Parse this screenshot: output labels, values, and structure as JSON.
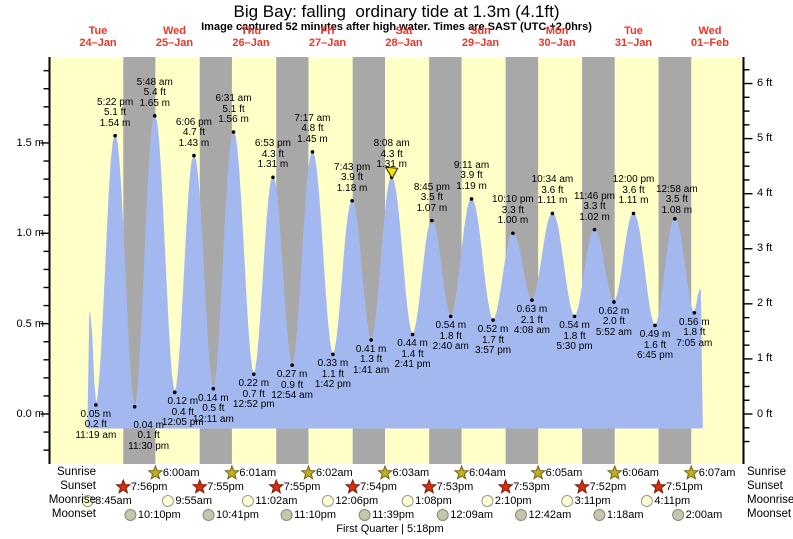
{
  "title": "Big Bay: falling  ordinary tide at 1.3m (4.1ft)",
  "subtitle": "Image captured 52 minutes after high water. Times are SAST (UTC +2.0hrs)",
  "days": [
    {
      "dow": "Tue",
      "date": "24–Jan"
    },
    {
      "dow": "Wed",
      "date": "25–Jan"
    },
    {
      "dow": "Thu",
      "date": "26–Jan"
    },
    {
      "dow": "Fri",
      "date": "27–Jan"
    },
    {
      "dow": "Sat",
      "date": "28–Jan"
    },
    {
      "dow": "Sun",
      "date": "29–Jan"
    },
    {
      "dow": "Mon",
      "date": "30–Jan"
    },
    {
      "dow": "Tue",
      "date": "31–Jan"
    },
    {
      "dow": "Wed",
      "date": "01–Feb"
    }
  ],
  "colors": {
    "day_background": "#ffffc8",
    "night_band": "#a8a8a8",
    "tide_fill": "#a4b8f0",
    "day_label_red": "#e8362a",
    "axis_black": "#000000",
    "sunrise_star_fill": "#c4b01e",
    "sunrise_star_stroke": "#6e6414",
    "sunset_star_fill": "#d92e10",
    "sunset_star_stroke": "#7a1a08",
    "moonrise_fill": "#ffffd6",
    "moonrise_stroke": "#999988",
    "moonset_fill": "#c6c6ad",
    "moonset_stroke": "#88887a",
    "marker_yellow": "#f5e400"
  },
  "chart_data": {
    "type": "area",
    "title": "Big Bay: falling  ordinary tide at 1.3m (4.1ft)",
    "y_axis_left": {
      "unit": "m",
      "major_ticks": [
        0.0,
        0.5,
        1.0,
        1.5
      ],
      "minor_step": 0.1,
      "range": [
        -0.28,
        1.98
      ]
    },
    "y_axis_right": {
      "unit": "ft",
      "major_ticks": [
        0,
        1,
        2,
        3,
        4,
        5,
        6
      ],
      "minor_step": 0.25
    },
    "extremes": [
      {
        "day": 0,
        "type": "low",
        "time": "11:19 am",
        "ft": 0.2,
        "m": 0.05
      },
      {
        "day": 0,
        "type": "high",
        "time": "5:22 pm",
        "ft": 5.1,
        "m": 1.54
      },
      {
        "day": 0,
        "type": "low",
        "time": "11:30 pm",
        "ft": 0.1,
        "m": 0.04
      },
      {
        "day": 1,
        "type": "high",
        "time": "5:48 am",
        "ft": 5.4,
        "m": 1.65
      },
      {
        "day": 1,
        "type": "low",
        "time": "12:05 pm",
        "ft": 0.4,
        "m": 0.12
      },
      {
        "day": 1,
        "type": "high",
        "time": "6:06 pm",
        "ft": 4.7,
        "m": 1.43
      },
      {
        "day": 2,
        "type": "low",
        "time": "12:11 am",
        "ft": 0.5,
        "m": 0.14
      },
      {
        "day": 2,
        "type": "high",
        "time": "6:31 am",
        "ft": 5.1,
        "m": 1.56
      },
      {
        "day": 2,
        "type": "low",
        "time": "12:52 pm",
        "ft": 0.7,
        "m": 0.22
      },
      {
        "day": 2,
        "type": "high",
        "time": "6:53 pm",
        "ft": 4.3,
        "m": 1.31
      },
      {
        "day": 3,
        "type": "low",
        "time": "12:54 am",
        "ft": 0.9,
        "m": 0.27
      },
      {
        "day": 3,
        "type": "high",
        "time": "7:17 am",
        "ft": 4.8,
        "m": 1.45
      },
      {
        "day": 3,
        "type": "low",
        "time": "1:42 pm",
        "ft": 1.1,
        "m": 0.33
      },
      {
        "day": 3,
        "type": "high",
        "time": "7:43 pm",
        "ft": 3.9,
        "m": 1.18
      },
      {
        "day": 4,
        "type": "low",
        "time": "1:41 am",
        "ft": 1.3,
        "m": 0.41
      },
      {
        "day": 4,
        "type": "high",
        "time": "8:08 am",
        "ft": 4.3,
        "m": 1.31
      },
      {
        "day": 4,
        "type": "low",
        "time": "2:41 pm",
        "ft": 1.4,
        "m": 0.44
      },
      {
        "day": 4,
        "type": "high",
        "time": "8:45 pm",
        "ft": 3.5,
        "m": 1.07
      },
      {
        "day": 5,
        "type": "low",
        "time": "2:40 am",
        "ft": 1.8,
        "m": 0.54
      },
      {
        "day": 5,
        "type": "high",
        "time": "9:11 am",
        "ft": 3.9,
        "m": 1.19
      },
      {
        "day": 5,
        "type": "low",
        "time": "3:57 pm",
        "ft": 1.7,
        "m": 0.52
      },
      {
        "day": 5,
        "type": "high",
        "time": "10:10 pm",
        "ft": 3.3,
        "m": 1.0
      },
      {
        "day": 6,
        "type": "low",
        "time": "4:08 am",
        "ft": 2.1,
        "m": 0.63
      },
      {
        "day": 6,
        "type": "high",
        "time": "10:34 am",
        "ft": 3.6,
        "m": 1.11
      },
      {
        "day": 6,
        "type": "low",
        "time": "5:30 pm",
        "ft": 1.8,
        "m": 0.54
      },
      {
        "day": 6,
        "type": "high",
        "time": "11:46 pm",
        "ft": 3.3,
        "m": 1.02
      },
      {
        "day": 7,
        "type": "low",
        "time": "5:52 am",
        "ft": 2.0,
        "m": 0.62
      },
      {
        "day": 7,
        "type": "high",
        "time": "12:00 pm",
        "ft": 3.6,
        "m": 1.11
      },
      {
        "day": 7,
        "type": "low",
        "time": "6:45 pm",
        "ft": 1.6,
        "m": 0.49
      },
      {
        "day": 8,
        "type": "high",
        "time": "12:58 am",
        "ft": 3.5,
        "m": 1.08
      },
      {
        "day": 8,
        "type": "low",
        "time": "7:05 am",
        "ft": 1.8,
        "m": 0.56
      }
    ],
    "current_marker_extreme_index": 15
  },
  "astro": {
    "rows": [
      {
        "label": "Sunrise",
        "icon": "sunrise-star",
        "events": [
          {
            "day": 1,
            "time": "6:00am"
          },
          {
            "day": 2,
            "time": "6:01am"
          },
          {
            "day": 3,
            "time": "6:02am"
          },
          {
            "day": 4,
            "time": "6:03am"
          },
          {
            "day": 5,
            "time": "6:04am"
          },
          {
            "day": 6,
            "time": "6:05am"
          },
          {
            "day": 7,
            "time": "6:06am"
          },
          {
            "day": 8,
            "time": "6:07am"
          }
        ]
      },
      {
        "label": "Sunset",
        "icon": "sunset-star",
        "events": [
          {
            "day": 0,
            "time": "7:56pm"
          },
          {
            "day": 1,
            "time": "7:55pm"
          },
          {
            "day": 2,
            "time": "7:55pm"
          },
          {
            "day": 3,
            "time": "7:54pm"
          },
          {
            "day": 4,
            "time": "7:53pm"
          },
          {
            "day": 5,
            "time": "7:53pm"
          },
          {
            "day": 6,
            "time": "7:52pm"
          },
          {
            "day": 7,
            "time": "7:51pm"
          }
        ]
      },
      {
        "label": "Moonrise",
        "icon": "moonrise-circle",
        "events": [
          {
            "day": 0,
            "time": "8:45am"
          },
          {
            "day": 1,
            "time": "9:55am"
          },
          {
            "day": 2,
            "time": "11:02am"
          },
          {
            "day": 3,
            "time": "12:06pm"
          },
          {
            "day": 4,
            "time": "1:08pm"
          },
          {
            "day": 5,
            "time": "2:10pm"
          },
          {
            "day": 6,
            "time": "3:11pm"
          },
          {
            "day": 7,
            "time": "4:11pm"
          }
        ]
      },
      {
        "label": "Moonset",
        "icon": "moonset-circle",
        "events": [
          {
            "day": 0,
            "time": "10:10pm"
          },
          {
            "day": 1,
            "time": "10:41pm"
          },
          {
            "day": 2,
            "time": "11:10pm"
          },
          {
            "day": 3,
            "time": "11:39pm"
          },
          {
            "day": 5,
            "time": "12:09am"
          },
          {
            "day": 6,
            "time": "12:42am"
          },
          {
            "day": 7,
            "time": "1:18am"
          },
          {
            "day": 8,
            "time": "2:00am"
          }
        ]
      }
    ],
    "moon_phase": "First Quarter | 5:18pm"
  }
}
